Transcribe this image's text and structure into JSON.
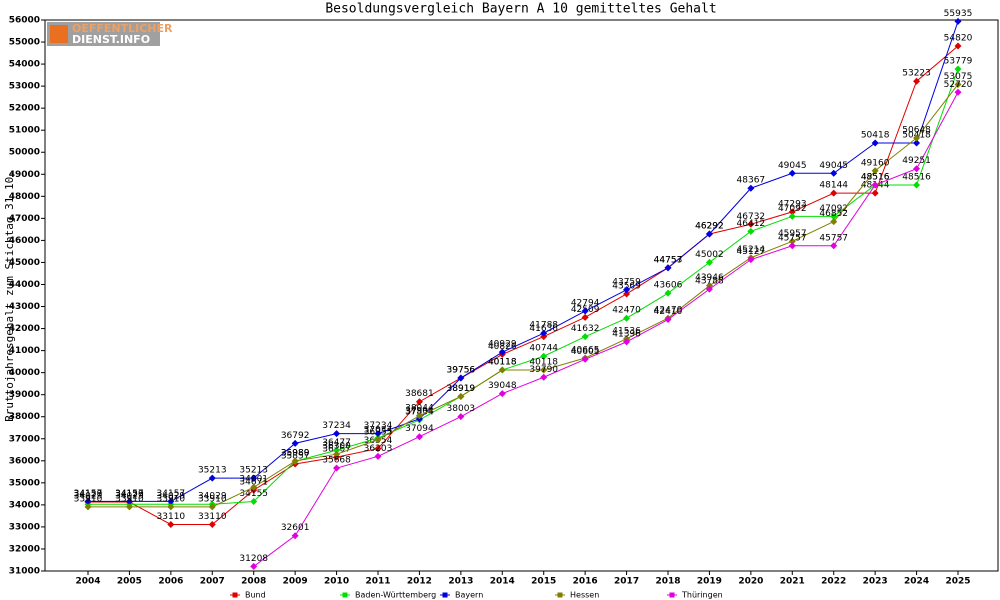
{
  "logo": {
    "line1": "OEFFENTLICHER",
    "line2": "DIENST.INFO"
  },
  "chart_data": {
    "type": "line",
    "title": "Besoldungsvergleich Bayern A 10 gemitteltes Gehalt",
    "y_label": "Bruttojahresgehalt zum Stichtag 31.10.",
    "categories": [
      "2004",
      "2005",
      "2006",
      "2007",
      "2008",
      "2009",
      "2010",
      "2011",
      "2012",
      "2013",
      "2014",
      "2015",
      "2016",
      "2017",
      "2018",
      "2019",
      "2020",
      "2021",
      "2022",
      "2023",
      "2024",
      "2025"
    ],
    "ylim": [
      31000,
      56000
    ],
    "yticks": [
      31000,
      32000,
      33000,
      34000,
      35000,
      36000,
      37000,
      38000,
      39000,
      40000,
      41000,
      42000,
      43000,
      44000,
      45000,
      46000,
      47000,
      48000,
      49000,
      50000,
      51000,
      52000,
      53000,
      54000,
      55000,
      56000
    ],
    "series": [
      {
        "name": "Bund",
        "color": "#e00000",
        "values": [
          34129,
          34129,
          33110,
          33110,
          34671,
          35857,
          36167,
          36554,
          38681,
          39756,
          40826,
          41636,
          42509,
          43569,
          44757,
          46292,
          46732,
          47293,
          48144,
          48144,
          53223,
          54820
        ]
      },
      {
        "name": "Baden-Württemberg",
        "color": "#00e000",
        "values": [
          34029,
          34029,
          34029,
          34029,
          34155,
          35980,
          36477,
          37034,
          37854,
          38919,
          40118,
          40744,
          41632,
          42470,
          43606,
          45002,
          46412,
          47092,
          47092,
          48516,
          48516,
          53779
        ]
      },
      {
        "name": "Bayern",
        "color": "#0000e0",
        "values": [
          34157,
          34157,
          34157,
          35213,
          35213,
          36792,
          37234,
          37234,
          37904,
          39756,
          40929,
          41788,
          42794,
          43759,
          44753,
          46292,
          48367,
          49045,
          49045,
          50418,
          50418,
          55935
        ]
      },
      {
        "name": "Hessen",
        "color": "#808000",
        "values": [
          33910,
          33910,
          33910,
          33910,
          34801,
          35989,
          36300,
          36955,
          38044,
          38919,
          40118,
          40118,
          40665,
          41536,
          42470,
          43946,
          45214,
          45957,
          46852,
          49160,
          50648,
          53075
        ]
      },
      {
        "name": "Thüringen",
        "color": "#e000e0",
        "values": [
          null,
          null,
          null,
          null,
          31208,
          32601,
          35668,
          36203,
          37094,
          38003,
          39048,
          39790,
          40605,
          41396,
          42410,
          43788,
          45127,
          45757,
          45757,
          48516,
          49251,
          52720
        ]
      }
    ]
  }
}
